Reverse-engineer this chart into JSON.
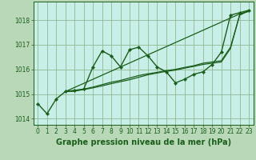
{
  "background_color": "#b8d8b8",
  "plot_bg_color": "#c8eee8",
  "grid_color": "#90b890",
  "line_color": "#1a5e1a",
  "marker_color": "#1a5e1a",
  "title": "Graphe pression niveau de la mer (hPa)",
  "xlim": [
    -0.5,
    23.5
  ],
  "ylim": [
    1013.75,
    1018.75
  ],
  "yticks": [
    1014,
    1015,
    1016,
    1017,
    1018
  ],
  "xticks": [
    0,
    1,
    2,
    3,
    4,
    5,
    6,
    7,
    8,
    9,
    10,
    11,
    12,
    13,
    14,
    15,
    16,
    17,
    18,
    19,
    20,
    21,
    22,
    23
  ],
  "lines": [
    {
      "x": [
        0,
        1,
        2,
        3,
        4,
        5,
        6,
        7,
        8,
        9,
        10,
        11,
        12,
        13,
        14,
        15,
        16,
        17,
        18,
        19,
        20,
        21,
        22,
        23
      ],
      "y": [
        1014.6,
        1014.2,
        1014.8,
        1015.1,
        1015.15,
        1015.2,
        1016.1,
        1016.75,
        1016.55,
        1016.1,
        1016.8,
        1016.9,
        1016.55,
        1016.1,
        1015.9,
        1015.45,
        1015.6,
        1015.8,
        1015.9,
        1016.2,
        1016.7,
        1018.2,
        1018.3,
        1018.4
      ],
      "marker": true,
      "lw": 1.0
    },
    {
      "x": [
        3,
        22,
        23
      ],
      "y": [
        1015.1,
        1018.25,
        1018.35
      ],
      "marker": false,
      "lw": 0.9
    },
    {
      "x": [
        3,
        4,
        5,
        6,
        7,
        8,
        9,
        10,
        11,
        12,
        13,
        14,
        15,
        16,
        17,
        18,
        19,
        20,
        21,
        22,
        23
      ],
      "y": [
        1015.1,
        1015.12,
        1015.2,
        1015.28,
        1015.38,
        1015.48,
        1015.55,
        1015.65,
        1015.75,
        1015.82,
        1015.88,
        1015.95,
        1016.0,
        1016.08,
        1016.15,
        1016.25,
        1016.3,
        1016.35,
        1016.9,
        1018.2,
        1018.38
      ],
      "marker": false,
      "lw": 0.9
    },
    {
      "x": [
        3,
        4,
        5,
        6,
        7,
        8,
        9,
        10,
        11,
        12,
        13,
        14,
        15,
        16,
        17,
        18,
        19,
        20,
        21,
        22,
        23
      ],
      "y": [
        1015.1,
        1015.12,
        1015.18,
        1015.25,
        1015.33,
        1015.42,
        1015.5,
        1015.58,
        1015.68,
        1015.78,
        1015.85,
        1015.92,
        1015.97,
        1016.05,
        1016.12,
        1016.2,
        1016.25,
        1016.3,
        1016.85,
        1018.22,
        1018.38
      ],
      "marker": false,
      "lw": 0.9
    }
  ],
  "title_fontsize": 7,
  "tick_fontsize": 5.5,
  "tick_color": "#1a5e1a",
  "label_color": "#1a5e1a",
  "label_fontsize": 7
}
